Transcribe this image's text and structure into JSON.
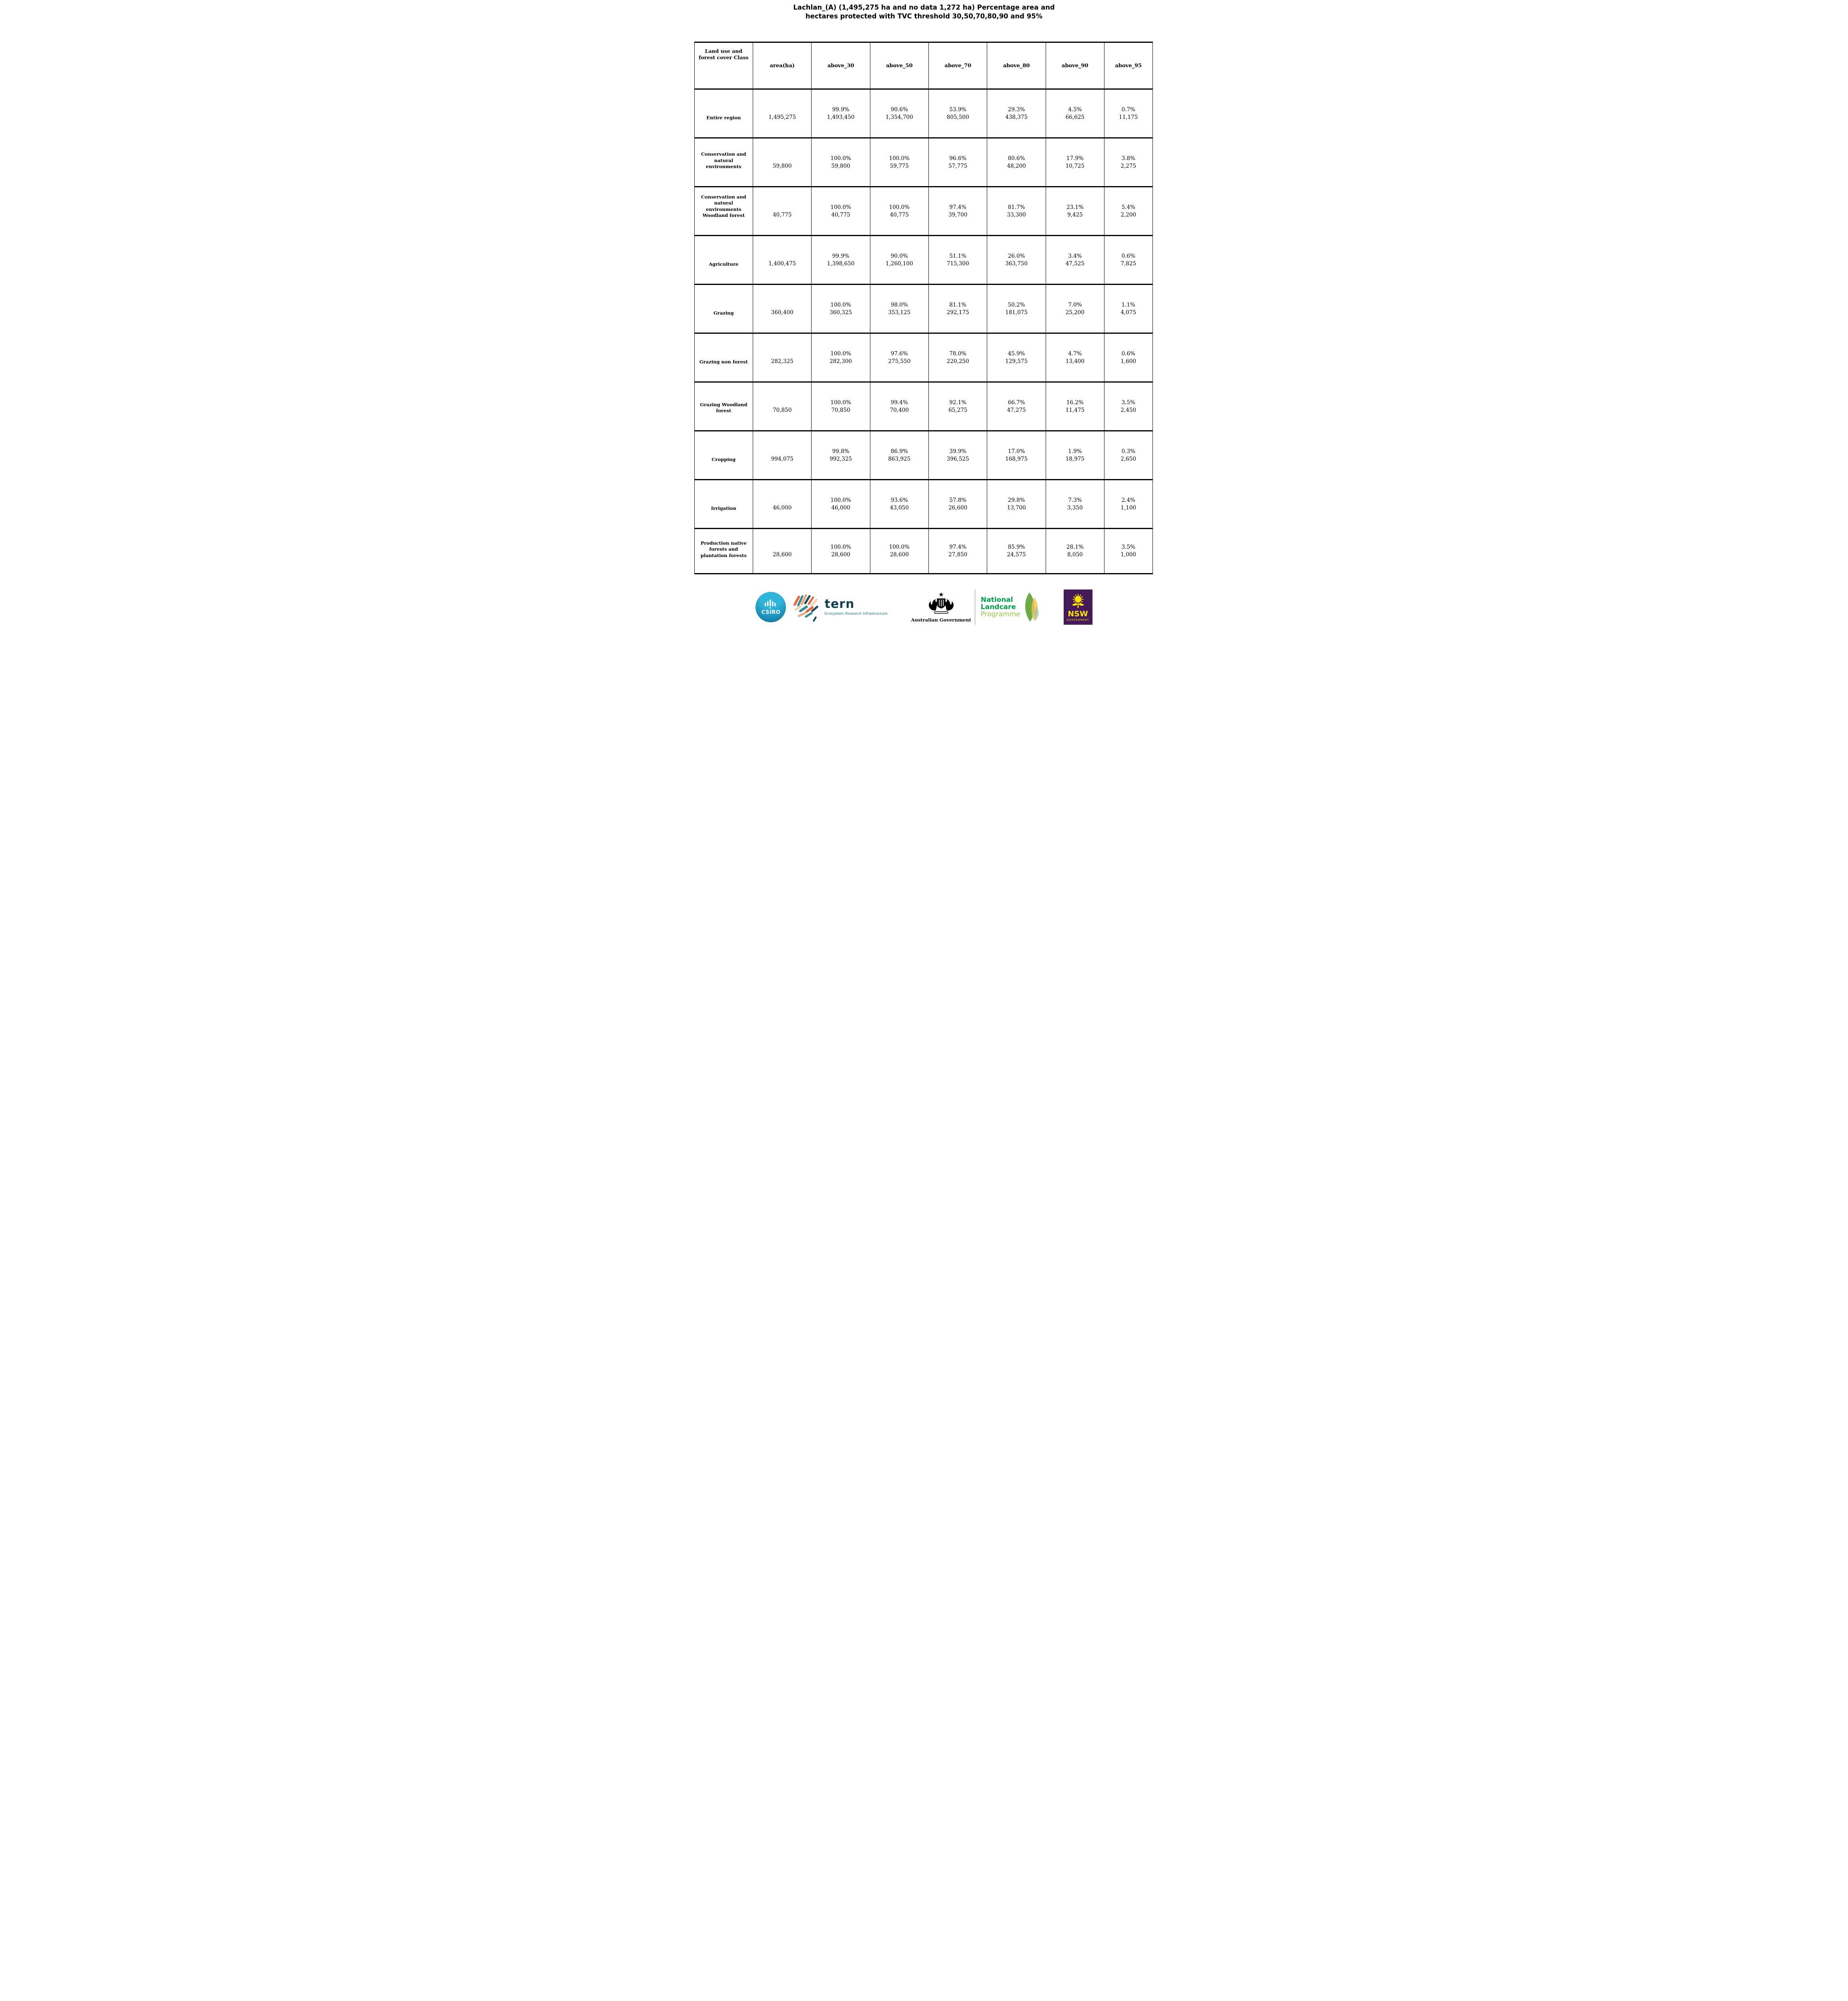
{
  "title_lines": [
    "Lachlan_(A) (1,495,275 ha and no data 1,272 ha) Percentage area and",
    "hectares protected with TVC threshold 30,50,70,80,90 and 95%"
  ],
  "table": {
    "columns": [
      "Land use and forest cover Class",
      "area(ha)",
      "above_30",
      "above_50",
      "above_70",
      "above_80",
      "above_90",
      "above_95"
    ],
    "rows": [
      {
        "label": "Entire region",
        "area_ha": "1,495,275",
        "cells": [
          {
            "pct": "99.9%",
            "ha": "1,493,450"
          },
          {
            "pct": "90.6%",
            "ha": "1,354,700"
          },
          {
            "pct": "53.9%",
            "ha": "805,500"
          },
          {
            "pct": "29.3%",
            "ha": "438,375"
          },
          {
            "pct": "4.5%",
            "ha": "66,625"
          },
          {
            "pct": "0.7%",
            "ha": "11,175"
          }
        ]
      },
      {
        "label": "Conservation and natural environments",
        "area_ha": "59,800",
        "cells": [
          {
            "pct": "100.0%",
            "ha": "59,800"
          },
          {
            "pct": "100.0%",
            "ha": "59,775"
          },
          {
            "pct": "96.6%",
            "ha": "57,775"
          },
          {
            "pct": "80.6%",
            "ha": "48,200"
          },
          {
            "pct": "17.9%",
            "ha": "10,725"
          },
          {
            "pct": "3.8%",
            "ha": "2,275"
          }
        ]
      },
      {
        "label": "Conservation and natural environments Woodland forest",
        "area_ha": "40,775",
        "cells": [
          {
            "pct": "100.0%",
            "ha": "40,775"
          },
          {
            "pct": "100.0%",
            "ha": "40,775"
          },
          {
            "pct": "97.4%",
            "ha": "39,700"
          },
          {
            "pct": "81.7%",
            "ha": "33,300"
          },
          {
            "pct": "23.1%",
            "ha": "9,425"
          },
          {
            "pct": "5.4%",
            "ha": "2,200"
          }
        ]
      },
      {
        "label": "Agriculture",
        "area_ha": "1,400,475",
        "cells": [
          {
            "pct": "99.9%",
            "ha": "1,398,650"
          },
          {
            "pct": "90.0%",
            "ha": "1,260,100"
          },
          {
            "pct": "51.1%",
            "ha": "715,300"
          },
          {
            "pct": "26.0%",
            "ha": "363,750"
          },
          {
            "pct": "3.4%",
            "ha": "47,525"
          },
          {
            "pct": "0.6%",
            "ha": "7,825"
          }
        ]
      },
      {
        "label": "Grazing",
        "area_ha": "360,400",
        "cells": [
          {
            "pct": "100.0%",
            "ha": "360,325"
          },
          {
            "pct": "98.0%",
            "ha": "353,125"
          },
          {
            "pct": "81.1%",
            "ha": "292,175"
          },
          {
            "pct": "50.2%",
            "ha": "181,075"
          },
          {
            "pct": "7.0%",
            "ha": "25,200"
          },
          {
            "pct": "1.1%",
            "ha": "4,075"
          }
        ]
      },
      {
        "label": "Grazing non forest",
        "area_ha": "282,325",
        "cells": [
          {
            "pct": "100.0%",
            "ha": "282,300"
          },
          {
            "pct": "97.6%",
            "ha": "275,550"
          },
          {
            "pct": "78.0%",
            "ha": "220,250"
          },
          {
            "pct": "45.9%",
            "ha": "129,575"
          },
          {
            "pct": "4.7%",
            "ha": "13,400"
          },
          {
            "pct": "0.6%",
            "ha": "1,600"
          }
        ]
      },
      {
        "label": "Grazing Woodland forest",
        "area_ha": "70,850",
        "cells": [
          {
            "pct": "100.0%",
            "ha": "70,850"
          },
          {
            "pct": "99.4%",
            "ha": "70,400"
          },
          {
            "pct": "92.1%",
            "ha": "65,275"
          },
          {
            "pct": "66.7%",
            "ha": "47,275"
          },
          {
            "pct": "16.2%",
            "ha": "11,475"
          },
          {
            "pct": "3.5%",
            "ha": "2,450"
          }
        ]
      },
      {
        "label": "Cropping",
        "area_ha": "994,075",
        "cells": [
          {
            "pct": "99.8%",
            "ha": "992,325"
          },
          {
            "pct": "86.9%",
            "ha": "863,925"
          },
          {
            "pct": "39.9%",
            "ha": "396,525"
          },
          {
            "pct": "17.0%",
            "ha": "168,975"
          },
          {
            "pct": "1.9%",
            "ha": "18,975"
          },
          {
            "pct": "0.3%",
            "ha": "2,650"
          }
        ]
      },
      {
        "label": "Irrigation",
        "area_ha": "46,000",
        "cells": [
          {
            "pct": "100.0%",
            "ha": "46,000"
          },
          {
            "pct": "93.6%",
            "ha": "43,050"
          },
          {
            "pct": "57.8%",
            "ha": "26,600"
          },
          {
            "pct": "29.8%",
            "ha": "13,700"
          },
          {
            "pct": "7.3%",
            "ha": "3,350"
          },
          {
            "pct": "2.4%",
            "ha": "1,100"
          }
        ]
      },
      {
        "label": "Production native forests and plantation forests",
        "area_ha": "28,600",
        "cells": [
          {
            "pct": "100.0%",
            "ha": "28,600"
          },
          {
            "pct": "100.0%",
            "ha": "28,600"
          },
          {
            "pct": "97.4%",
            "ha": "27,850"
          },
          {
            "pct": "85.9%",
            "ha": "24,575"
          },
          {
            "pct": "28.1%",
            "ha": "8,050"
          },
          {
            "pct": "3.5%",
            "ha": "1,000"
          }
        ]
      }
    ]
  },
  "footer": {
    "csiro_label": "CSIRO",
    "tern_label": "tern",
    "tern_subtitle": "Ecosystem Research Infrastructure",
    "australian_government_label": "Australian Government",
    "landcare_line1": "National",
    "landcare_line2": "Landcare",
    "landcare_line3": "Programme",
    "nsw_label": "NSW",
    "nsw_sublabel": "GOVERNMENT"
  },
  "colors": {
    "csiro_top": "#2FB5D9",
    "csiro_bottom": "#0C6E9E",
    "tern_navy": "#123F4F",
    "tern_teal": "#1A7A8C",
    "landcare_green": "#00A04A",
    "landcare_light": "#97C93D",
    "nsw_purple": "#451A58",
    "nsw_yellow": "#FFE600",
    "leaf_green": "#5CA131",
    "leaf_yellow": "#F4C64A",
    "leaf_sage": "#A9BF9B",
    "map_orange": "#E96A41",
    "map_coral": "#F2A584",
    "map_teal": "#2E8E8E",
    "map_dark": "#16505E",
    "map_cream": "#F2CFAE"
  }
}
